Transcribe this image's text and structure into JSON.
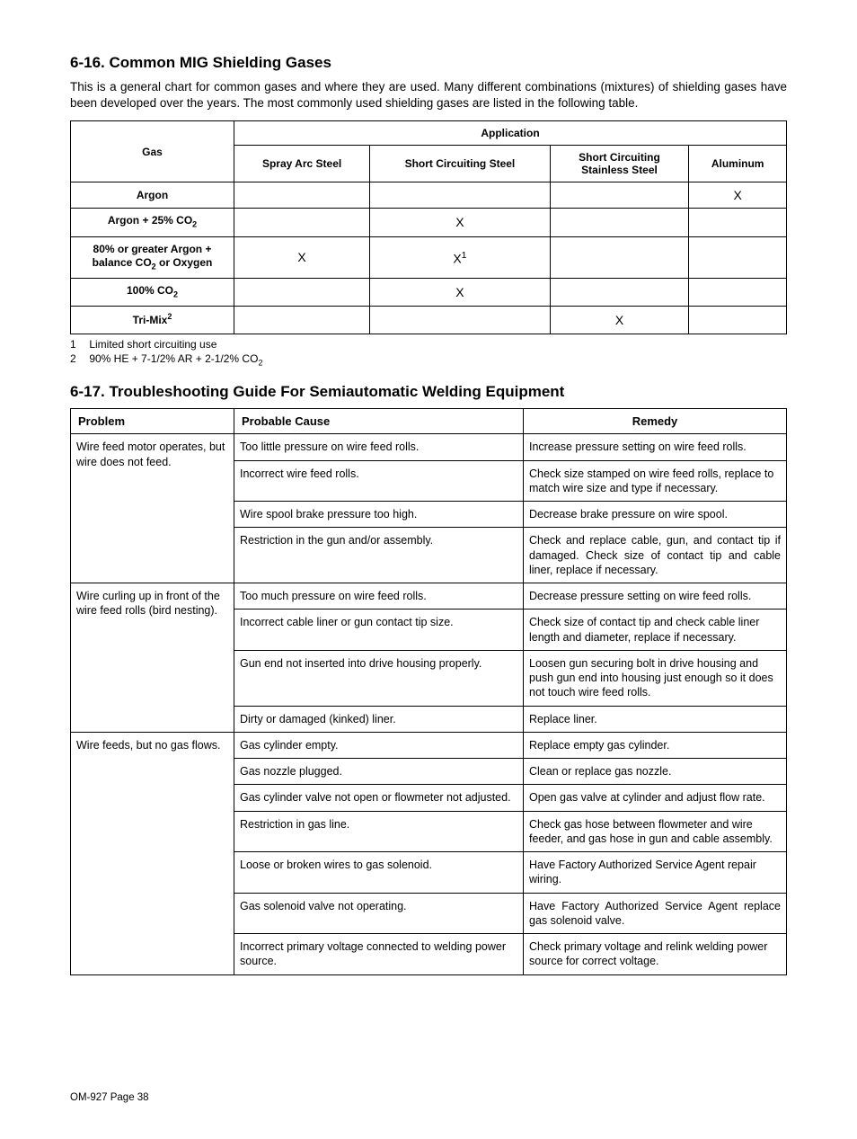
{
  "section16": {
    "heading": "6-16.  Common MIG Shielding Gases",
    "intro": "This is a general chart for common gases and where they are used. Many different combinations (mixtures) of shielding gases have been developed over the years. The most commonly used shielding gases are listed in the following table.",
    "table": {
      "gas_header": "Gas",
      "application_header": "Application",
      "columns": [
        "Spray Arc Steel",
        "Short Circuiting Steel",
        "Short Circuiting Stainless Steel",
        "Aluminum"
      ],
      "rows": [
        {
          "label_html": "Argon",
          "cells": [
            "",
            "",
            "",
            "X"
          ]
        },
        {
          "label_html": "Argon + 25% CO<sub>2</sub>",
          "cells": [
            "",
            "X",
            "",
            ""
          ]
        },
        {
          "label_html": "80% or  greater Argon + balance CO<sub>2</sub> or Oxygen",
          "cells": [
            "X",
            "X<sup>1</sup>",
            "",
            ""
          ]
        },
        {
          "label_html": "100% CO<sub>2</sub>",
          "cells": [
            "",
            "X",
            "",
            ""
          ]
        },
        {
          "label_html": "Tri-Mix<sup>2</sup>",
          "cells": [
            "",
            "",
            "X",
            ""
          ]
        }
      ]
    },
    "footnotes": [
      {
        "num": "1",
        "text_html": "Limited short circuiting use"
      },
      {
        "num": "2",
        "text_html": "90% HE + 7-1/2% AR + 2-1/2% CO<sub>2</sub>"
      }
    ]
  },
  "section17": {
    "heading": "6-17.  Troubleshooting Guide For Semiautomatic Welding Equipment",
    "headers": {
      "problem": "Problem",
      "cause": "Probable Cause",
      "remedy": "Remedy"
    },
    "groups": [
      {
        "problem": "Wire feed motor operates, but wire does not feed.",
        "rows": [
          {
            "cause": "Too little pressure on wire feed rolls.",
            "remedy": "Increase pressure setting on wire feed rolls.",
            "justify": false
          },
          {
            "cause": "Incorrect wire feed rolls.",
            "remedy": "Check size stamped on wire feed rolls, replace to match wire size and type if necessary.",
            "justify": false
          },
          {
            "cause": "Wire spool brake pressure too high.",
            "remedy": "Decrease brake pressure on wire spool.",
            "justify": false
          },
          {
            "cause": "Restriction in the gun and/or assembly.",
            "remedy": "Check and replace cable, gun, and contact tip if damaged. Check size of contact tip and cable liner, replace if necessary.",
            "justify": true
          }
        ]
      },
      {
        "problem": "Wire curling up in front of the wire feed rolls (bird nesting).",
        "rows": [
          {
            "cause": "Too much pressure on wire feed rolls.",
            "remedy": "Decrease pressure setting on wire feed rolls.",
            "justify": false
          },
          {
            "cause": "Incorrect cable liner or gun contact tip size.",
            "remedy": "Check size of contact tip and check cable liner length and diameter, replace if necessary.",
            "justify": false
          },
          {
            "cause": "Gun end not inserted into drive housing properly.",
            "remedy": "Loosen gun securing bolt in drive housing and push gun end into housing just enough so it does not touch wire feed rolls.",
            "justify": false
          },
          {
            "cause": "Dirty or damaged (kinked) liner.",
            "remedy": "Replace liner.",
            "justify": false
          }
        ]
      },
      {
        "problem": "Wire feeds, but no gas flows.",
        "rows": [
          {
            "cause": "Gas cylinder empty.",
            "remedy": "Replace empty gas cylinder.",
            "justify": false
          },
          {
            "cause": "Gas nozzle plugged.",
            "remedy": "Clean or replace gas nozzle.",
            "justify": false
          },
          {
            "cause": "Gas cylinder valve not open or flowmeter not adjusted.",
            "remedy": "Open gas valve at cylinder and adjust flow rate.",
            "justify": false
          },
          {
            "cause": "Restriction in gas line.",
            "remedy": "Check gas hose between flowmeter and wire feeder, and gas hose in gun and cable assembly.",
            "justify": false
          },
          {
            "cause": "Loose or broken wires to gas solenoid.",
            "remedy": "Have Factory Authorized Service Agent repair wiring.",
            "justify": false
          },
          {
            "cause": "Gas solenoid valve not operating.",
            "remedy": "Have Factory Authorized Service Agent replace gas solenoid valve.",
            "justify": true
          },
          {
            "cause": "Incorrect primary voltage connected to welding power source.",
            "remedy": "Check primary voltage and relink welding power source for correct voltage.",
            "justify": false
          }
        ]
      }
    ]
  },
  "footer": "OM-927 Page 38"
}
